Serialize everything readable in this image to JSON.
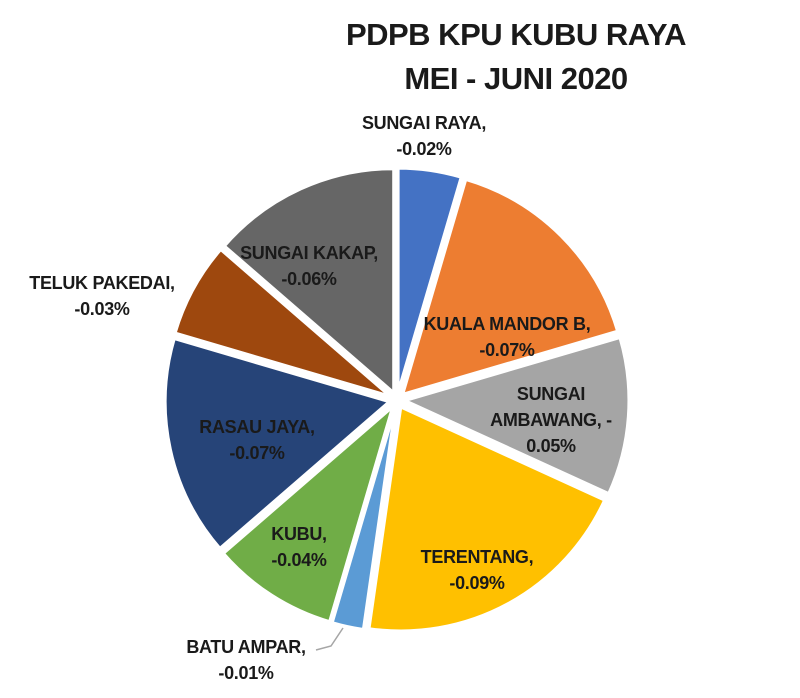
{
  "chart_data": {
    "type": "pie",
    "title_lines": [
      "PDPB KPU KUBU RAYA",
      "MEI - JUNI 2020"
    ],
    "title": "PDPB KPU KUBU RAYA MEI - JUNI 2020",
    "unit": "%",
    "legend_position": "none",
    "start_angle_deg": 0,
    "direction": "clockwise",
    "label_style": "category name and value, bold black",
    "slices": [
      {
        "id": "sungai-raya",
        "name": "SUNGAI RAYA",
        "value": -0.02,
        "color": "#4472C4",
        "label_lines": [
          "SUNGAI RAYA,",
          "-0.02%"
        ],
        "label_placement": "outside-top"
      },
      {
        "id": "kuala-mandor-b",
        "name": "KUALA MANDOR B",
        "value": -0.07,
        "color": "#ED7D31",
        "label_lines": [
          "KUALA MANDOR B,",
          "-0.07%"
        ],
        "label_placement": "inside"
      },
      {
        "id": "sungai-ambawang",
        "name": "SUNGAI AMBAWANG",
        "value": -0.05,
        "color": "#A5A5A5",
        "label_lines": [
          "SUNGAI",
          "AMBAWANG, -",
          "0.05%"
        ],
        "label_placement": "inside"
      },
      {
        "id": "terentang",
        "name": "TERENTANG",
        "value": -0.09,
        "color": "#FFC000",
        "label_lines": [
          "TERENTANG,",
          "-0.09%"
        ],
        "label_placement": "inside"
      },
      {
        "id": "batu-ampar",
        "name": "BATU AMPAR",
        "value": -0.01,
        "color": "#5B9BD5",
        "label_lines": [
          "BATU AMPAR,",
          "-0.01%"
        ],
        "label_placement": "outside-leader-line"
      },
      {
        "id": "kubu",
        "name": "KUBU",
        "value": -0.04,
        "color": "#70AD47",
        "label_lines": [
          "KUBU,",
          "-0.04%"
        ],
        "label_placement": "inside"
      },
      {
        "id": "rasau-jaya",
        "name": "RASAU JAYA",
        "value": -0.07,
        "color": "#264478",
        "label_lines": [
          "RASAU JAYA,",
          "-0.07%"
        ],
        "label_placement": "inside"
      },
      {
        "id": "teluk-pakedai",
        "name": "TELUK PAKEDAI",
        "value": -0.03,
        "color": "#9E480E",
        "label_lines": [
          "TELUK PAKEDAI,",
          "-0.03%"
        ],
        "label_placement": "outside-left"
      },
      {
        "id": "sungai-kakap",
        "name": "SUNGAI KAKAP",
        "value": -0.06,
        "color": "#666666",
        "label_lines": [
          "SUNGAI KAKAP,",
          "-0.06%"
        ],
        "label_placement": "inside"
      }
    ]
  }
}
